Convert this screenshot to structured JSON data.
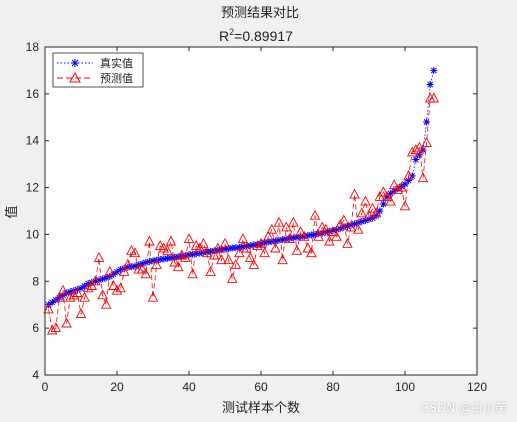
{
  "watermark": "CSDN @白小芙",
  "chart_data": {
    "type": "line",
    "title": "预测结果对比",
    "subtitle_prefix": "R",
    "subtitle_sup": "2",
    "subtitle_value": "=0.89917",
    "xlabel": "测试样本个数",
    "ylabel": "值",
    "xlim": [
      0,
      120
    ],
    "ylim": [
      4,
      18
    ],
    "xticks": [
      0,
      20,
      40,
      60,
      80,
      100,
      120
    ],
    "yticks": [
      4,
      6,
      8,
      10,
      12,
      14,
      16,
      18
    ],
    "grid": false,
    "legend_position": "top-left",
    "series": [
      {
        "name": "真实值",
        "color": "#0000ff",
        "marker": "asterisk",
        "linestyle": "dotted",
        "values": [
          7.0,
          7.1,
          7.2,
          7.3,
          7.4,
          7.5,
          7.55,
          7.6,
          7.65,
          7.7,
          7.8,
          7.9,
          7.95,
          8.0,
          8.05,
          8.1,
          8.15,
          8.2,
          8.3,
          8.4,
          8.5,
          8.55,
          8.6,
          8.62,
          8.65,
          8.7,
          8.75,
          8.8,
          8.85,
          8.88,
          8.9,
          8.93,
          8.95,
          8.98,
          9.0,
          9.03,
          9.05,
          9.08,
          9.1,
          9.13,
          9.15,
          9.18,
          9.2,
          9.23,
          9.25,
          9.28,
          9.3,
          9.33,
          9.35,
          9.38,
          9.4,
          9.42,
          9.43,
          9.45,
          9.47,
          9.5,
          9.52,
          9.55,
          9.57,
          9.6,
          9.65,
          9.68,
          9.7,
          9.72,
          9.75,
          9.78,
          9.8,
          9.83,
          9.86,
          9.88,
          9.9,
          9.92,
          9.95,
          9.98,
          10.0,
          10.03,
          10.05,
          10.1,
          10.13,
          10.17,
          10.2,
          10.25,
          10.3,
          10.35,
          10.4,
          10.45,
          10.5,
          10.55,
          10.6,
          10.65,
          10.7,
          10.8,
          11.0,
          11.3,
          11.6,
          11.75,
          11.85,
          11.95,
          12.05,
          12.15,
          12.3,
          12.5,
          13.2,
          13.4,
          13.6,
          14.8,
          16.4,
          17.0
        ]
      },
      {
        "name": "预测值",
        "color": "#ff0000",
        "marker": "triangle",
        "linestyle": "dashed",
        "values": [
          6.8,
          5.9,
          6.0,
          7.3,
          7.6,
          6.2,
          7.3,
          7.4,
          7.5,
          6.6,
          7.3,
          7.7,
          7.8,
          8.0,
          9.0,
          7.4,
          7.0,
          8.4,
          7.8,
          7.6,
          7.7,
          8.4,
          8.7,
          9.3,
          9.2,
          8.5,
          8.5,
          8.3,
          9.7,
          7.3,
          8.7,
          9.5,
          9.4,
          9.3,
          9.7,
          8.8,
          8.6,
          9.1,
          9.0,
          9.8,
          8.3,
          9.5,
          9.4,
          9.6,
          9.2,
          8.4,
          9.1,
          9.4,
          8.9,
          9.6,
          8.9,
          8.1,
          8.7,
          9.2,
          9.8,
          9.4,
          9.0,
          8.7,
          9.5,
          9.6,
          9.2,
          9.9,
          10.2,
          9.4,
          10.5,
          8.9,
          10.3,
          9.8,
          10.5,
          9.3,
          10.1,
          9.9,
          9.4,
          9.2,
          10.8,
          9.9,
          10.3,
          10.2,
          9.7,
          10.1,
          9.9,
          10.4,
          10.6,
          9.6,
          10.3,
          11.7,
          10.2,
          10.9,
          11.4,
          10.8,
          11.1,
          10.9,
          11.6,
          11.8,
          11.6,
          11.4,
          12.1,
          11.9,
          12.0,
          11.2,
          12.5,
          13.5,
          13.6,
          13.7,
          12.4,
          13.9,
          15.8,
          15.8
        ]
      }
    ]
  }
}
